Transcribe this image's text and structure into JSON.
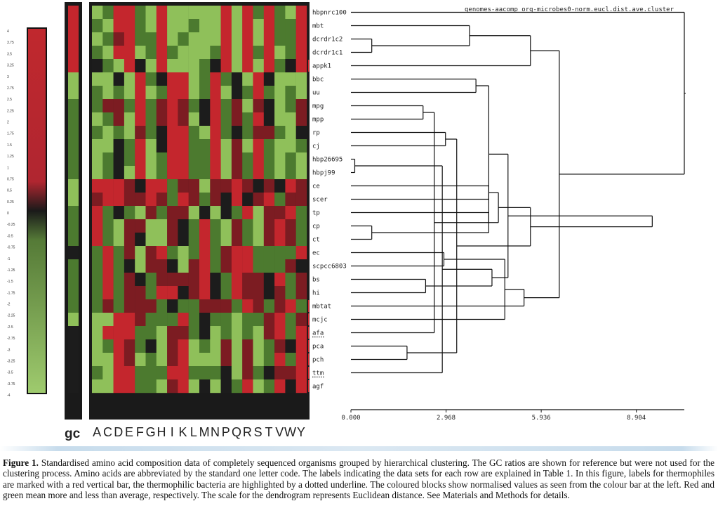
{
  "figure": {
    "dendrogram_title": "genomes-aacomp_org-microbes0-norm.eucl.dist.ave.cluster",
    "gc_label": "gc",
    "amino_acids": [
      "A",
      "C",
      "D",
      "E",
      "F",
      "G",
      "H",
      "I",
      "K",
      "L",
      "M",
      "N",
      "P",
      "Q",
      "R",
      "S",
      "T",
      "V",
      "W",
      "Y"
    ],
    "color_scale": {
      "ticks": [
        "4",
        "3.75",
        "3.5",
        "3.25",
        "3",
        "2.75",
        "2.5",
        "2.25",
        "2",
        "1.75",
        "1.5",
        "1.25",
        "1",
        "0.75",
        "0.5",
        "0.25",
        "0",
        "-0.25",
        "-0.5",
        "-0.75",
        "-1",
        "-1.25",
        "-1.5",
        "-1.75",
        "-2",
        "-2.25",
        "-2.5",
        "-2.75",
        "-3",
        "-3.25",
        "-3.5",
        "-3.75",
        "-4"
      ],
      "high_color": "#c0282e",
      "mid_color": "#1a1a1a",
      "low_color": "#8cbf58"
    },
    "rows": [
      {
        "label": "hbpnrc100",
        "thermophile": false,
        "dotted": false
      },
      {
        "label": "mbt",
        "thermophile": false,
        "dotted": false
      },
      {
        "label": "dcrdr1c2",
        "thermophile": false,
        "dotted": false
      },
      {
        "label": "dcrdr1c1",
        "thermophile": false,
        "dotted": false
      },
      {
        "label": "appk1",
        "thermophile": true,
        "dotted": false
      },
      {
        "label": "bbc",
        "thermophile": false,
        "dotted": false
      },
      {
        "label": "uu",
        "thermophile": false,
        "dotted": false
      },
      {
        "label": "mpg",
        "thermophile": false,
        "dotted": false
      },
      {
        "label": "mpp",
        "thermophile": false,
        "dotted": false
      },
      {
        "label": "rp",
        "thermophile": false,
        "dotted": false
      },
      {
        "label": "cj",
        "thermophile": false,
        "dotted": false
      },
      {
        "label": "hbp26695",
        "thermophile": false,
        "dotted": false
      },
      {
        "label": "hbpj99",
        "thermophile": false,
        "dotted": false
      },
      {
        "label": "ce",
        "thermophile": false,
        "dotted": false
      },
      {
        "label": "scer",
        "thermophile": false,
        "dotted": false
      },
      {
        "label": "tp",
        "thermophile": false,
        "dotted": false
      },
      {
        "label": "cp",
        "thermophile": false,
        "dotted": false
      },
      {
        "label": "ct",
        "thermophile": false,
        "dotted": false
      },
      {
        "label": "ec",
        "thermophile": false,
        "dotted": false
      },
      {
        "label": "scpcc6803",
        "thermophile": false,
        "dotted": false
      },
      {
        "label": "bs",
        "thermophile": false,
        "dotted": false
      },
      {
        "label": "hi",
        "thermophile": false,
        "dotted": false
      },
      {
        "label": "mbtat",
        "thermophile": true,
        "dotted": false
      },
      {
        "label": "mcjc",
        "thermophile": true,
        "dotted": false
      },
      {
        "label": "afa",
        "thermophile": true,
        "dotted": true
      },
      {
        "label": "pca",
        "thermophile": true,
        "dotted": false
      },
      {
        "label": "pch",
        "thermophile": true,
        "dotted": false
      },
      {
        "label": "ttm",
        "thermophile": true,
        "dotted": true
      },
      {
        "label": "agf",
        "thermophile": true,
        "dotted": false
      }
    ],
    "gc_values": [
      2,
      2,
      2,
      2,
      2,
      -2,
      -2,
      -1,
      -1,
      -1,
      -1,
      -1,
      -1,
      -2,
      -2,
      -1,
      -1,
      -1,
      0,
      -1,
      -1,
      -1,
      -1,
      -2,
      0,
      0,
      0,
      0,
      0
    ],
    "heatmap": [
      [
        -2,
        -1,
        2,
        2,
        -1,
        -2,
        2,
        -2,
        -2,
        -2,
        -2,
        -2,
        2,
        -2,
        2,
        -1,
        2,
        -1,
        -2,
        2
      ],
      [
        -1,
        -2,
        2,
        2,
        -1,
        -2,
        2,
        -2,
        -2,
        -1,
        -2,
        -2,
        2,
        -2,
        2,
        -2,
        2,
        -1,
        -1,
        2
      ],
      [
        -2,
        -1,
        1,
        2,
        -1,
        -1,
        2,
        -2,
        -1,
        -2,
        -2,
        -2,
        2,
        -2,
        2,
        -2,
        2,
        -1,
        -1,
        2
      ],
      [
        -1,
        -2,
        2,
        2,
        -2,
        -1,
        2,
        -1,
        -2,
        -2,
        -2,
        -1,
        2,
        -2,
        2,
        -1,
        2,
        -2,
        -1,
        2
      ],
      [
        0,
        -1,
        -2,
        2,
        0,
        -2,
        2,
        -2,
        -2,
        -2,
        -1,
        0,
        2,
        -2,
        2,
        -2,
        2,
        -1,
        0,
        2
      ],
      [
        -2,
        -2,
        0,
        -2,
        2,
        -1,
        0,
        2,
        2,
        -2,
        -1,
        2,
        -1,
        0,
        -2,
        2,
        0,
        -2,
        -2,
        -2
      ],
      [
        -1,
        -2,
        -1,
        -2,
        2,
        -2,
        -1,
        2,
        2,
        -2,
        -1,
        2,
        -2,
        0,
        -1,
        2,
        -1,
        -2,
        -1,
        -2
      ],
      [
        -1,
        1,
        1,
        -1,
        2,
        -1,
        1,
        2,
        1,
        -1,
        0,
        2,
        -1,
        1,
        -2,
        1,
        0,
        -2,
        -1,
        1
      ],
      [
        -2,
        -1,
        1,
        -2,
        2,
        -1,
        1,
        2,
        1,
        -2,
        0,
        2,
        -1,
        1,
        -1,
        2,
        0,
        -2,
        -2,
        1
      ],
      [
        -1,
        -2,
        -1,
        -2,
        1,
        -1,
        0,
        2,
        2,
        -1,
        -2,
        2,
        -1,
        0,
        -1,
        1,
        1,
        -1,
        -2,
        0
      ],
      [
        -2,
        -2,
        0,
        -1,
        2,
        -2,
        0,
        2,
        2,
        -1,
        -1,
        2,
        -2,
        1,
        -2,
        2,
        -1,
        -2,
        -2,
        -1
      ],
      [
        -2,
        -1,
        0,
        -1,
        2,
        -2,
        -1,
        2,
        2,
        -1,
        -1,
        2,
        -2,
        1,
        -1,
        2,
        -1,
        -2,
        -1,
        -2
      ],
      [
        -2,
        -1,
        0,
        -2,
        2,
        -2,
        -1,
        2,
        2,
        -1,
        -1,
        2,
        -2,
        1,
        -1,
        2,
        -1,
        -2,
        -1,
        -2
      ],
      [
        2,
        2,
        2,
        1,
        0,
        2,
        2,
        -1,
        1,
        1,
        -2,
        1,
        1,
        2,
        1,
        0,
        1,
        0,
        2,
        1
      ],
      [
        1,
        2,
        2,
        1,
        1,
        2,
        1,
        -1,
        2,
        1,
        -1,
        1,
        0,
        2,
        0,
        1,
        2,
        -1,
        1,
        1
      ],
      [
        2,
        -1,
        0,
        -1,
        -2,
        1,
        -1,
        1,
        1,
        -2,
        0,
        -2,
        0,
        -1,
        2,
        -2,
        1,
        1,
        2,
        -1
      ],
      [
        2,
        -1,
        -2,
        1,
        1,
        -2,
        -2,
        1,
        0,
        -1,
        2,
        -1,
        -2,
        1,
        -1,
        -2,
        1,
        2,
        1,
        -1
      ],
      [
        2,
        -1,
        -2,
        1,
        0,
        -2,
        -2,
        1,
        0,
        -1,
        2,
        -1,
        -2,
        1,
        -1,
        -2,
        1,
        2,
        1,
        -1
      ],
      [
        -1,
        2,
        -1,
        1,
        -2,
        1,
        2,
        -1,
        -2,
        -1,
        2,
        -1,
        1,
        2,
        2,
        -1,
        -1,
        -1,
        -1,
        2
      ],
      [
        -1,
        2,
        -1,
        0,
        -2,
        1,
        1,
        0,
        -2,
        1,
        2,
        -1,
        1,
        2,
        2,
        -1,
        -1,
        -1,
        1,
        0
      ],
      [
        -1,
        2,
        -1,
        1,
        0,
        -1,
        1,
        1,
        1,
        1,
        2,
        0,
        -1,
        2,
        1,
        1,
        0,
        2,
        -1,
        1
      ],
      [
        -1,
        2,
        -1,
        1,
        1,
        -1,
        2,
        2,
        0,
        1,
        2,
        0,
        -1,
        2,
        1,
        1,
        0,
        1,
        -1,
        1
      ],
      [
        -1,
        1,
        -1,
        1,
        1,
        1,
        -1,
        0,
        -1,
        -1,
        1,
        1,
        1,
        -1,
        2,
        1,
        -1,
        1,
        2,
        -1
      ],
      [
        -2,
        -2,
        2,
        2,
        1,
        -1,
        -1,
        -1,
        2,
        -1,
        0,
        -1,
        -1,
        -2,
        -1,
        -1,
        1,
        2,
        -1,
        1
      ],
      [
        -2,
        2,
        2,
        2,
        -1,
        -1,
        -2,
        1,
        1,
        -1,
        0,
        -2,
        -1,
        -2,
        -1,
        -2,
        1,
        2,
        -1,
        2
      ],
      [
        -2,
        -1,
        2,
        1,
        -1,
        0,
        -2,
        1,
        2,
        -2,
        -1,
        -2,
        1,
        -2,
        1,
        -2,
        -1,
        1,
        0,
        2
      ],
      [
        -2,
        -2,
        2,
        1,
        -2,
        -1,
        -2,
        1,
        2,
        -2,
        -2,
        -2,
        1,
        -2,
        1,
        -2,
        -1,
        2,
        -1,
        2
      ],
      [
        -1,
        -2,
        2,
        2,
        -1,
        -1,
        -1,
        2,
        2,
        -1,
        -1,
        -1,
        0,
        -2,
        1,
        -1,
        0,
        1,
        1,
        2
      ],
      [
        -2,
        -2,
        2,
        2,
        -1,
        -1,
        -2,
        1,
        2,
        -2,
        0,
        -2,
        0,
        -1,
        2,
        -2,
        -1,
        2,
        0,
        2
      ]
    ],
    "dendrogram": {
      "axis_ticks": [
        "0.000",
        "2.968",
        "5.936",
        "8.904"
      ],
      "axis_values": [
        0,
        2.968,
        5.936,
        8.904
      ],
      "max": 10.4,
      "merges": [
        [
          2,
          3,
          0.65
        ],
        [
          11,
          12,
          0.12
        ],
        [
          16,
          17,
          0.65
        ],
        [
          25,
          26,
          1.75
        ],
        [
          7,
          8,
          2.25
        ],
        [
          1,
          29,
          3.7
        ],
        [
          9,
          10,
          2.95
        ],
        [
          20,
          21,
          2.33
        ],
        [
          18,
          19,
          2.9
        ],
        [
          24,
          33,
          2.6
        ],
        [
          27,
          30,
          2.85
        ],
        [
          5,
          6,
          3.9
        ],
        [
          13,
          14,
          4.3
        ],
        [
          15,
          31,
          4.3
        ],
        [
          32,
          35,
          3.3
        ],
        [
          36,
          39,
          4.4
        ],
        [
          38,
          40,
          4.3
        ],
        [
          41,
          42,
          4.6
        ],
        [
          23,
          37,
          4.8
        ],
        [
          44,
          45,
          4.9
        ],
        [
          4,
          34,
          5.6
        ],
        [
          22,
          47,
          5.4
        ],
        [
          46,
          43,
          5.6
        ],
        [
          50,
          49,
          6.5
        ],
        [
          51,
          48,
          9.4
        ],
        [
          52,
          0,
          10.4
        ]
      ]
    }
  },
  "caption": {
    "label": "Figure 1.",
    "text": " Standardised amino acid composition data of completely sequenced organisms grouped by hierarchical clustering. The GC ratios are shown for reference but were not used for the clustering process. Amino acids are abbreviated by the standard one letter code. The labels indicating the data sets for each row are explained in Table 1. In this figure, labels for thermophiles are marked with a red vertical bar, the thermophilic bacteria are highlighted by a dotted underline. The coloured blocks show normalised values as seen from the colour bar at the left. Red and green mean more and less than average, respectively. The scale for the dendrogram represents Euclidean distance. See Materials and Methods for details."
  }
}
